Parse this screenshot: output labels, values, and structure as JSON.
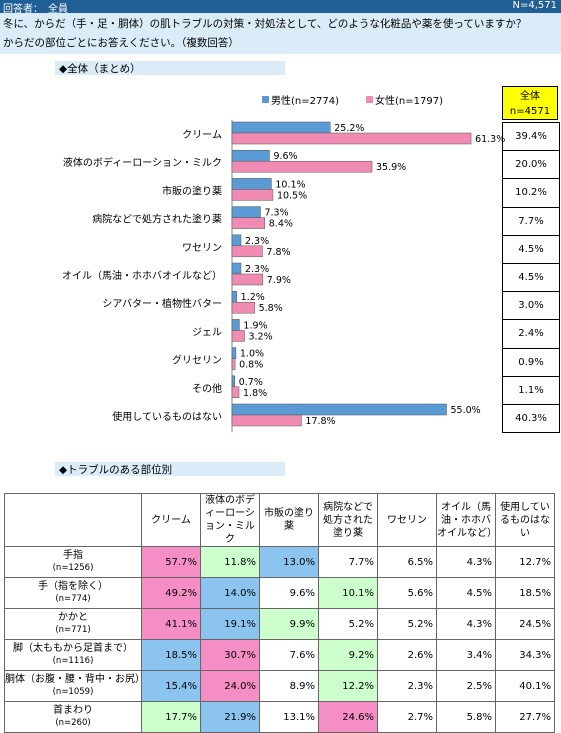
{
  "header": {
    "respondent": "回答者：　全員",
    "n_total": "N=4,571",
    "question_line1": "冬に、からだ（手・足・胴体）の肌トラブルの対策・対処法として、どのような化粧品や薬を使っていますか？",
    "question_line2": "からだの部位ごとにお答えください。（複数回答）"
  },
  "section1_title": "◆全体（まとめ）",
  "section2_title": "◆トラブルのある部位別",
  "colors": {
    "male": "#5b9bd5",
    "female": "#f08cb4",
    "header_blue": "#1f5f96",
    "light_blue": "#d9ecf8",
    "highlight_yellow": "#ffff00",
    "cell_pink": "#f48ec4",
    "cell_blue": "#8cc4f0",
    "cell_green": "#ccffcc"
  },
  "chart_data": {
    "type": "bar",
    "orientation": "horizontal",
    "categories": [
      "クリーム",
      "液体のボディーローション・ミルク",
      "市販の塗り薬",
      "病院などで処方された塗り薬",
      "ワセリン",
      "オイル（馬油・ホホバオイルなど）",
      "シアバター・植物性バター",
      "ジェル",
      "グリセリン",
      "その他",
      "使用しているものはない"
    ],
    "series": [
      {
        "name": "男性(n=2774)",
        "values": [
          25.2,
          9.6,
          10.1,
          7.3,
          2.3,
          2.3,
          1.2,
          1.9,
          1.0,
          0.7,
          55.0
        ],
        "labels": [
          "25.2%",
          "9.6%",
          "10.1%",
          "7.3%",
          "2.3%",
          "2.3%",
          "1.2%",
          "1.9%",
          "1.0%",
          "0.7%",
          "55.0%"
        ]
      },
      {
        "name": "女性(n=1797)",
        "values": [
          61.3,
          35.9,
          10.5,
          8.4,
          7.8,
          7.9,
          5.8,
          3.2,
          0.8,
          1.8,
          17.8
        ],
        "labels": [
          "61.3%",
          "35.9%",
          "10.5%",
          "8.4%",
          "7.8%",
          "7.9%",
          "5.8%",
          "3.2%",
          "0.8%",
          "1.8%",
          "17.8%"
        ]
      }
    ],
    "overall": {
      "header_line1": "全体",
      "header_line2": "n=4571",
      "values": [
        "39.4%",
        "20.0%",
        "10.2%",
        "7.7%",
        "4.5%",
        "4.5%",
        "3.0%",
        "2.4%",
        "0.9%",
        "1.1%",
        "40.3%"
      ]
    },
    "legend_position": "top"
  },
  "table": {
    "columns": [
      "クリーム",
      "液体のボディーローション・ミルク",
      "市販の塗り薬",
      "病院などで処方された塗り薬",
      "ワセリン",
      "オイル（馬油・ホホバオイルなど）",
      "使用しているものはない"
    ],
    "rows": [
      {
        "name": "手指",
        "n": "(n=1256)",
        "values": [
          "57.7%",
          "11.8%",
          "13.0%",
          "7.7%",
          "6.5%",
          "4.3%",
          "12.7%"
        ],
        "hl": [
          "pink",
          "green",
          "blue",
          "",
          "",
          "",
          ""
        ]
      },
      {
        "name": "手（指を除く）",
        "n": "(n=774)",
        "values": [
          "49.2%",
          "14.0%",
          "9.6%",
          "10.1%",
          "5.6%",
          "4.5%",
          "18.5%"
        ],
        "hl": [
          "pink",
          "blue",
          "",
          "green",
          "",
          "",
          ""
        ]
      },
      {
        "name": "かかと",
        "n": "(n=771)",
        "values": [
          "41.1%",
          "19.1%",
          "9.9%",
          "5.2%",
          "5.2%",
          "4.3%",
          "24.5%"
        ],
        "hl": [
          "pink",
          "blue",
          "green",
          "",
          "",
          "",
          ""
        ]
      },
      {
        "name": "脚（太ももから足首まで）",
        "n": "(n=1116)",
        "values": [
          "18.5%",
          "30.7%",
          "7.6%",
          "9.2%",
          "2.6%",
          "3.4%",
          "34.3%"
        ],
        "hl": [
          "blue",
          "pink",
          "",
          "green",
          "",
          "",
          ""
        ]
      },
      {
        "name": "胴体（お腹・腰・背中・お尻）",
        "n": "(n=1059)",
        "values": [
          "15.4%",
          "24.0%",
          "8.9%",
          "12.2%",
          "2.3%",
          "2.5%",
          "40.1%"
        ],
        "hl": [
          "blue",
          "pink",
          "",
          "green",
          "",
          "",
          ""
        ]
      },
      {
        "name": "首まわり",
        "n": "(n=260)",
        "values": [
          "17.7%",
          "21.9%",
          "13.1%",
          "24.6%",
          "2.7%",
          "5.8%",
          "27.7%"
        ],
        "hl": [
          "green",
          "blue",
          "",
          "pink",
          "",
          "",
          ""
        ]
      }
    ]
  }
}
